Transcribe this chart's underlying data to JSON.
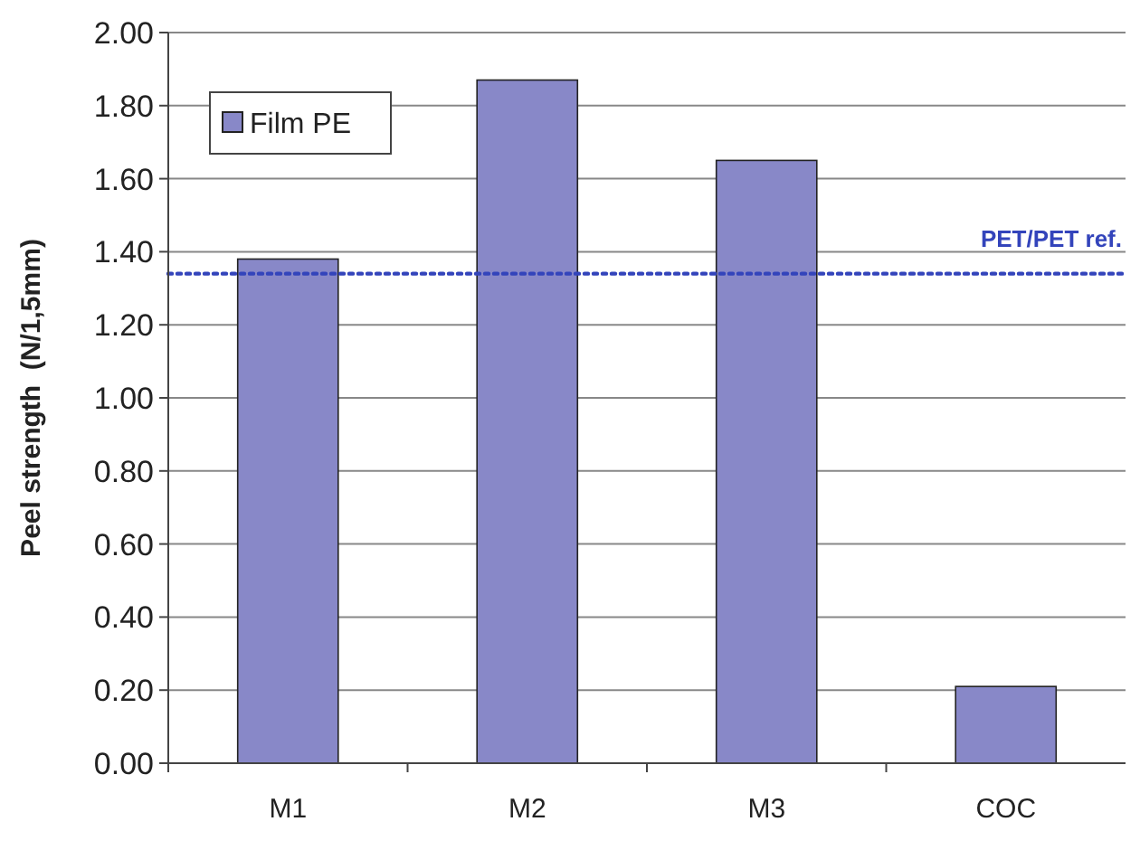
{
  "chart_data": {
    "type": "bar",
    "ylabel": "Peel strength  (N/1,5mm)",
    "categories": [
      "M1",
      "M2",
      "M3",
      "COC"
    ],
    "series": [
      {
        "name": "Film PE",
        "color": "#8888c8",
        "values": [
          1.38,
          1.87,
          1.65,
          0.21
        ]
      }
    ],
    "ylim": [
      0,
      2
    ],
    "yticks": [
      {
        "value": 0,
        "label": "0.00"
      },
      {
        "value": 0.2,
        "label": "0.20"
      },
      {
        "value": 0.4,
        "label": "0.40"
      },
      {
        "value": 0.6,
        "label": "0.60"
      },
      {
        "value": 0.8,
        "label": "0.80"
      },
      {
        "value": 1,
        "label": "1.00"
      },
      {
        "value": 1.2,
        "label": "1.20"
      },
      {
        "value": 1.4,
        "label": "1.40"
      },
      {
        "value": 1.6,
        "label": "1.60"
      },
      {
        "value": 1.8,
        "label": "1.80"
      },
      {
        "value": 2,
        "label": "2.00"
      }
    ],
    "grid": "y",
    "legend": "top left",
    "ref_lines": [
      {
        "axis": "y",
        "value": 1.34,
        "label": "PET/PET ref.",
        "color": "#3344bb",
        "line_style": "dotted"
      }
    ]
  }
}
